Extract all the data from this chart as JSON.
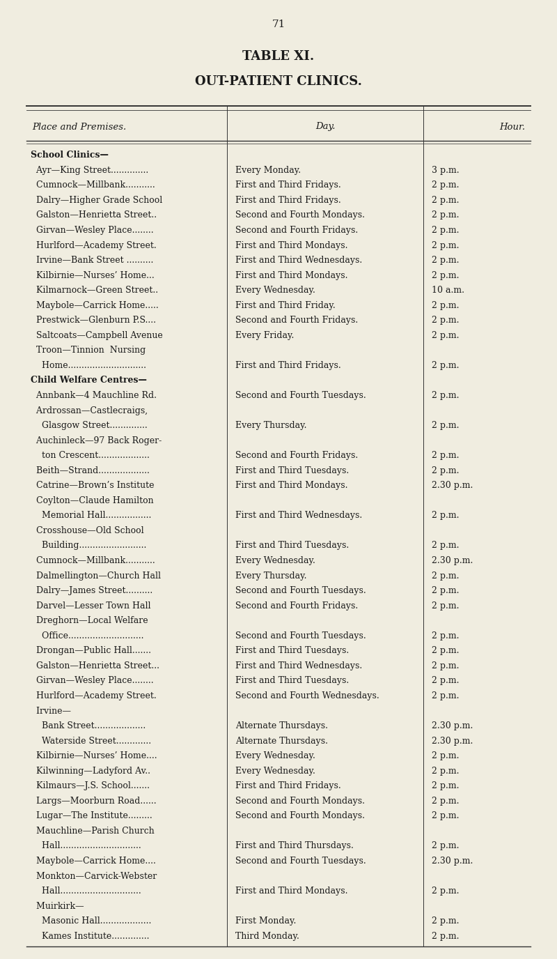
{
  "page_number": "71",
  "title1": "TABLE XI.",
  "title2": "OUT-PATIENT CLINICS.",
  "col_headers": [
    "Place and Premises.",
    "Day.",
    "Hour."
  ],
  "bg_color": "#f0ede0",
  "text_color": "#1a1a1a",
  "rows": [
    {
      "place": "School Clinics—",
      "day": "",
      "hour": "",
      "section_header": true
    },
    {
      "place": "  Ayr—King Street..............",
      "day": "Every Monday.",
      "hour": "3 p.m.",
      "section_header": false
    },
    {
      "place": "  Cumnock—Millbank...........",
      "day": "First and Third Fridays.",
      "hour": "2 p.m.",
      "section_header": false
    },
    {
      "place": "  Dalry—Higher Grade School",
      "day": "First and Third Fridays.",
      "hour": "2 p.m.",
      "section_header": false
    },
    {
      "place": "  Galston—Henrietta Street..",
      "day": "Second and Fourth Mondays.",
      "hour": "2 p.m.",
      "section_header": false
    },
    {
      "place": "  Girvan—Wesley Place........",
      "day": "Second and Fourth Fridays.",
      "hour": "2 p.m.",
      "section_header": false
    },
    {
      "place": "  Hurlford—Academy Street.",
      "day": "First and Third Mondays.",
      "hour": "2 p.m.",
      "section_header": false
    },
    {
      "place": "  Irvine—Bank Street ..........",
      "day": "First and Third Wednesdays.",
      "hour": "2 p.m.",
      "section_header": false
    },
    {
      "place": "  Kilbirnie—Nurses’ Home...",
      "day": "First and Third Mondays.",
      "hour": "2 p.m.",
      "section_header": false
    },
    {
      "place": "  Kilmarnock—Green Street..",
      "day": "Every Wednesday.",
      "hour": "10 a.m.",
      "section_header": false
    },
    {
      "place": "  Maybole—Carrick Home.....",
      "day": "First and Third Friday.",
      "hour": "2 p.m.",
      "section_header": false
    },
    {
      "place": "  Prestwick—Glenburn P.S....",
      "day": "Second and Fourth Fridays.",
      "hour": "2 p.m.",
      "section_header": false
    },
    {
      "place": "  Saltcoats—Campbell Avenue",
      "day": "Every Friday.",
      "hour": "2 p.m.",
      "section_header": false
    },
    {
      "place": "  Troon—Tinnion  Nursing",
      "day": "",
      "hour": "",
      "section_header": false
    },
    {
      "place": "    Home.............................",
      "day": "First and Third Fridays.",
      "hour": "2 p.m.",
      "section_header": false
    },
    {
      "place": "Child Welfare Centres—",
      "day": "",
      "hour": "",
      "section_header": true
    },
    {
      "place": "  Annbank—4 Mauchline Rd.",
      "day": "Second and Fourth Tuesdays.",
      "hour": "2 p.m.",
      "section_header": false
    },
    {
      "place": "  Ardrossan—Castlecraigs,",
      "day": "",
      "hour": "",
      "section_header": false
    },
    {
      "place": "    Glasgow Street..............",
      "day": "Every Thursday.",
      "hour": "2 p.m.",
      "section_header": false
    },
    {
      "place": "  Auchinleck—97 Back Roger-",
      "day": "",
      "hour": "",
      "section_header": false
    },
    {
      "place": "    ton Crescent...................",
      "day": "Second and Fourth Fridays.",
      "hour": "2 p.m.",
      "section_header": false
    },
    {
      "place": "  Beith—Strand...................",
      "day": "First and Third Tuesdays.",
      "hour": "2 p.m.",
      "section_header": false
    },
    {
      "place": "  Catrine—Brown’s Institute",
      "day": "First and Third Mondays.",
      "hour": "2.30 p.m.",
      "section_header": false
    },
    {
      "place": "  Coylton—Claude Hamilton",
      "day": "",
      "hour": "",
      "section_header": false
    },
    {
      "place": "    Memorial Hall.................",
      "day": "First and Third Wednesdays.",
      "hour": "2 p.m.",
      "section_header": false
    },
    {
      "place": "  Crosshouse—Old School",
      "day": "",
      "hour": "",
      "section_header": false
    },
    {
      "place": "    Building.........................",
      "day": "First and Third Tuesdays.",
      "hour": "2 p.m.",
      "section_header": false
    },
    {
      "place": "  Cumnock—Millbank...........",
      "day": "Every Wednesday.",
      "hour": "2.30 p.m.",
      "section_header": false
    },
    {
      "place": "  Dalmellington—Church Hall",
      "day": "Every Thursday.",
      "hour": "2 p.m.",
      "section_header": false
    },
    {
      "place": "  Dalry—James Street..........",
      "day": "Second and Fourth Tuesdays.",
      "hour": "2 p.m.",
      "section_header": false
    },
    {
      "place": "  Darvel—Lesser Town Hall",
      "day": "Second and Fourth Fridays.",
      "hour": "2 p.m.",
      "section_header": false
    },
    {
      "place": "  Dreghorn—Local Welfare",
      "day": "",
      "hour": "",
      "section_header": false
    },
    {
      "place": "    Office............................",
      "day": "Second and Fourth Tuesdays.",
      "hour": "2 p.m.",
      "section_header": false
    },
    {
      "place": "  Drongan—Public Hall.......",
      "day": "First and Third Tuesdays.",
      "hour": "2 p.m.",
      "section_header": false
    },
    {
      "place": "  Galston—Henrietta Street...",
      "day": "First and Third Wednesdays.",
      "hour": "2 p.m.",
      "section_header": false
    },
    {
      "place": "  Girvan—Wesley Place........",
      "day": "First and Third Tuesdays.",
      "hour": "2 p.m.",
      "section_header": false
    },
    {
      "place": "  Hurlford—Academy Street.",
      "day": "Second and Fourth Wednesdays.",
      "hour": "2 p.m.",
      "section_header": false
    },
    {
      "place": "  Irvine—",
      "day": "",
      "hour": "",
      "section_header": false
    },
    {
      "place": "    Bank Street...................",
      "day": "Alternate Thursdays.",
      "hour": "2.30 p.m.",
      "section_header": false
    },
    {
      "place": "    Waterside Street.............",
      "day": "Alternate Thursdays.",
      "hour": "2.30 p.m.",
      "section_header": false
    },
    {
      "place": "  Kilbirnie—Nurses’ Home....",
      "day": "Every Wednesday.",
      "hour": "2 p.m.",
      "section_header": false
    },
    {
      "place": "  Kilwinning—Ladyford Av..",
      "day": "Every Wednesday.",
      "hour": "2 p.m.",
      "section_header": false
    },
    {
      "place": "  Kilmaurs—J.S. School.......",
      "day": "First and Third Fridays.",
      "hour": "2 p.m.",
      "section_header": false
    },
    {
      "place": "  Largs—Moorburn Road......",
      "day": "Second and Fourth Mondays.",
      "hour": "2 p.m.",
      "section_header": false
    },
    {
      "place": "  Lugar—The Institute.........",
      "day": "Second and Fourth Mondays.",
      "hour": "2 p.m.",
      "section_header": false
    },
    {
      "place": "  Mauchline—Parish Church",
      "day": "",
      "hour": "",
      "section_header": false
    },
    {
      "place": "    Hall..............................",
      "day": "First and Third Thursdays.",
      "hour": "2 p.m.",
      "section_header": false
    },
    {
      "place": "  Maybole—Carrick Home....",
      "day": "Second and Fourth Tuesdays.",
      "hour": "2.30 p.m.",
      "section_header": false
    },
    {
      "place": "  Monkton—Carvick-Webster",
      "day": "",
      "hour": "",
      "section_header": false
    },
    {
      "place": "    Hall..............................",
      "day": "First and Third Mondays.",
      "hour": "2 p.m.",
      "section_header": false
    },
    {
      "place": "  Muirkirk—",
      "day": "",
      "hour": "",
      "section_header": false
    },
    {
      "place": "    Masonic Hall...................",
      "day": "First Monday.",
      "hour": "2 p.m.",
      "section_header": false
    },
    {
      "place": "    Kames Institute..............",
      "day": "Third Monday.",
      "hour": "2 p.m.",
      "section_header": false
    }
  ]
}
